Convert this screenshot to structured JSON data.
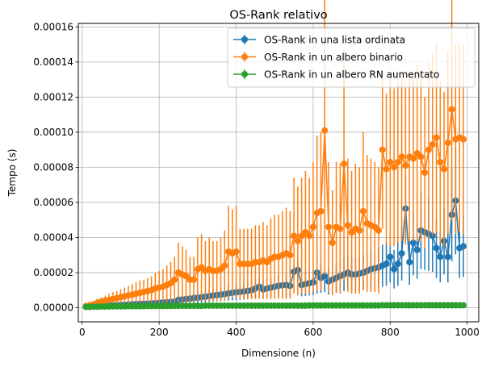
{
  "chart_data": {
    "type": "line",
    "title": "OS-Rank relativo",
    "xlabel": "Dimensione (n)",
    "ylabel": "Tempo (s)",
    "xlim": [
      -10,
      1030
    ],
    "ylim": [
      -8e-06,
      0.000162
    ],
    "x_ticks": [
      0,
      200,
      400,
      600,
      800,
      1000
    ],
    "x_tick_labels": [
      "0",
      "200",
      "400",
      "600",
      "800",
      "1000"
    ],
    "y_ticks": [
      0,
      2e-05,
      4e-05,
      6e-05,
      8e-05,
      0.0001,
      0.00012,
      0.00014,
      0.00016
    ],
    "y_tick_labels": [
      "0.00000",
      "0.00002",
      "0.00004",
      "0.00006",
      "0.00008",
      "0.00010",
      "0.00012",
      "0.00014",
      "0.00016"
    ],
    "grid": true,
    "legend_position": "top-right",
    "x": [
      10,
      20,
      30,
      40,
      50,
      60,
      70,
      80,
      90,
      100,
      110,
      120,
      130,
      140,
      150,
      160,
      170,
      180,
      190,
      200,
      210,
      220,
      230,
      240,
      250,
      260,
      270,
      280,
      290,
      300,
      310,
      320,
      330,
      340,
      350,
      360,
      370,
      380,
      390,
      400,
      410,
      420,
      430,
      440,
      450,
      460,
      470,
      480,
      490,
      500,
      510,
      520,
      530,
      540,
      550,
      560,
      570,
      580,
      590,
      600,
      610,
      620,
      630,
      640,
      650,
      660,
      670,
      680,
      690,
      700,
      710,
      720,
      730,
      740,
      750,
      760,
      770,
      780,
      790,
      800,
      810,
      820,
      830,
      840,
      850,
      860,
      870,
      880,
      890,
      900,
      910,
      920,
      930,
      940,
      950,
      960,
      970,
      980,
      990
    ],
    "series": [
      {
        "name": "OS-Rank in una lista ordinata",
        "color": "#1f77b4",
        "values": [
          5e-07,
          8e-07,
          9e-07,
          1e-06,
          1.1e-06,
          1.2e-06,
          1.3e-06,
          1.4e-06,
          1.5e-06,
          1.6e-06,
          1.7e-06,
          1.8e-06,
          2e-06,
          2.1e-06,
          2.2e-06,
          2.3e-06,
          2.4e-06,
          2.5e-06,
          2.6e-06,
          2.8e-06,
          3e-06,
          3.1e-06,
          3.3e-06,
          3.5e-06,
          4.5e-06,
          4.7e-06,
          5e-06,
          5.2e-06,
          5.5e-06,
          5.7e-06,
          6e-06,
          6.3e-06,
          6.6e-06,
          7e-06,
          7.2e-06,
          7.5e-06,
          7.8e-06,
          8.2e-06,
          8.5e-06,
          8.8e-06,
          9e-06,
          9.3e-06,
          9.6e-06,
          1e-05,
          1.1e-05,
          1.2e-05,
          1.05e-05,
          1.1e-05,
          1.15e-05,
          1.2e-05,
          1.25e-05,
          1.28e-05,
          1.3e-05,
          1.25e-05,
          2.05e-05,
          2.15e-05,
          1.3e-05,
          1.35e-05,
          1.4e-05,
          1.45e-05,
          2e-05,
          1.7e-05,
          1.8e-05,
          1.5e-05,
          1.6e-05,
          1.7e-05,
          1.8e-05,
          1.9e-05,
          2e-05,
          1.9e-05,
          1.9e-05,
          1.95e-05,
          2e-05,
          2.1e-05,
          2.2e-05,
          2.25e-05,
          2.3e-05,
          2.4e-05,
          2.5e-05,
          2.9e-05,
          2.2e-05,
          2.5e-05,
          3.1e-05,
          5.65e-05,
          2.6e-05,
          3.7e-05,
          3.3e-05,
          4.4e-05,
          4.3e-05,
          4.2e-05,
          4.1e-05,
          3.4e-05,
          2.9e-05,
          3.8e-05,
          2.9e-05,
          5.3e-05,
          6.1e-05,
          3.4e-05,
          3.5e-05
        ],
        "errors": [
          3e-07,
          4e-07,
          4e-07,
          5e-07,
          5e-07,
          6e-07,
          6e-07,
          7e-07,
          7e-07,
          8e-07,
          8e-07,
          9e-07,
          1e-06,
          1e-06,
          1.1e-06,
          1.1e-06,
          1.2e-06,
          1.2e-06,
          1.3e-06,
          1.4e-06,
          1.5e-06,
          1.5e-06,
          1.6e-06,
          1.7e-06,
          2.3e-06,
          2.4e-06,
          2.5e-06,
          2.6e-06,
          2.8e-06,
          2.9e-06,
          3e-06,
          3.2e-06,
          3.3e-06,
          3.5e-06,
          3.6e-06,
          3.8e-06,
          3.9e-06,
          4.1e-06,
          4.3e-06,
          4.4e-06,
          4.5e-06,
          4.7e-06,
          4.8e-06,
          5e-06,
          5.5e-06,
          6e-06,
          5.3e-06,
          5.5e-06,
          5.8e-06,
          6e-06,
          6.3e-06,
          6.4e-06,
          6.5e-06,
          6.3e-06,
          4e-06,
          6e-06,
          6.5e-06,
          6.8e-06,
          7e-06,
          7.3e-06,
          1.2e-05,
          8.5e-06,
          9e-06,
          7.5e-06,
          8e-06,
          8.5e-06,
          9e-06,
          9.5e-06,
          1e-05,
          9.5e-06,
          9.5e-06,
          9.8e-06,
          1e-05,
          1.05e-05,
          1.1e-05,
          1.13e-05,
          1.15e-05,
          1.2e-05,
          1.25e-05,
          1.45e-05,
          1.1e-05,
          1.25e-05,
          1.55e-05,
          1.8e-05,
          1.3e-05,
          1.85e-05,
          1.65e-05,
          2.2e-05,
          2.15e-05,
          2.1e-05,
          2.05e-05,
          1.7e-05,
          1.45e-05,
          1.9e-05,
          1.45e-05,
          2.65e-05,
          3.05e-05,
          1.7e-05,
          1.75e-05
        ]
      },
      {
        "name": "OS-Rank in un albero binario",
        "color": "#ff7f0e",
        "values": [
          1e-06,
          1.5e-06,
          2e-06,
          3e-06,
          3.5e-06,
          4e-06,
          4.5e-06,
          5e-06,
          5.5e-06,
          6e-06,
          6.5e-06,
          7e-06,
          7.5e-06,
          8e-06,
          8.5e-06,
          9e-06,
          9.5e-06,
          1e-05,
          1.1e-05,
          1.15e-05,
          1.2e-05,
          1.3e-05,
          1.4e-05,
          1.6e-05,
          2e-05,
          1.9e-05,
          1.8e-05,
          1.6e-05,
          1.6e-05,
          2.2e-05,
          2.3e-05,
          2.1e-05,
          2.2e-05,
          2.1e-05,
          2.1e-05,
          2.2e-05,
          2.4e-05,
          3.2e-05,
          3.1e-05,
          3.2e-05,
          2.5e-05,
          2.5e-05,
          2.5e-05,
          2.5e-05,
          2.6e-05,
          2.6e-05,
          2.7e-05,
          2.6e-05,
          2.8e-05,
          2.9e-05,
          2.9e-05,
          3e-05,
          3.1e-05,
          3e-05,
          4.1e-05,
          3.8e-05,
          4.1e-05,
          4.3e-05,
          4.1e-05,
          4.6e-05,
          5.4e-05,
          5.5e-05,
          0.000101,
          4.6e-05,
          3.7e-05,
          4.6e-05,
          4.5e-05,
          8.2e-05,
          4.7e-05,
          4.3e-05,
          4.5e-05,
          4.4e-05,
          5.5e-05,
          4.8e-05,
          4.7e-05,
          4.6e-05,
          4.4e-05,
          9e-05,
          7.9e-05,
          8.3e-05,
          8e-05,
          8.3e-05,
          8.6e-05,
          8.1e-05,
          8.6e-05,
          8.5e-05,
          8.8e-05,
          8.6e-05,
          7.7e-05,
          9e-05,
          9.3e-05,
          9.7e-05,
          8.3e-05,
          7.9e-05,
          9.4e-05,
          0.000113,
          9.6e-05,
          9.7e-05,
          9.6e-05
        ],
        "errors": [
          8e-07,
          1e-06,
          1.5e-06,
          2e-06,
          2.5e-06,
          3e-06,
          3.5e-06,
          4e-06,
          4e-06,
          4.5e-06,
          5e-06,
          5.5e-06,
          6e-06,
          6.5e-06,
          7e-06,
          7e-06,
          7.5e-06,
          8e-06,
          9e-06,
          9.5e-06,
          1e-05,
          1.1e-05,
          1.2e-05,
          1.3e-05,
          1.7e-05,
          1.6e-05,
          1.5e-05,
          1.3e-05,
          1.3e-05,
          1.8e-05,
          1.9e-05,
          1.7e-05,
          1.8e-05,
          1.7e-05,
          1.7e-05,
          1.8e-05,
          2e-05,
          2.6e-05,
          2.5e-05,
          2.6e-05,
          2e-05,
          2e-05,
          2e-05,
          2e-05,
          2.1e-05,
          2.1e-05,
          2.2e-05,
          2.1e-05,
          2.3e-05,
          2.4e-05,
          2.4e-05,
          2.5e-05,
          2.6e-05,
          2.5e-05,
          3.3e-05,
          3.1e-05,
          3.3e-05,
          3.5e-05,
          3.3e-05,
          3.7e-05,
          4.4e-05,
          4.5e-05,
          8.2e-05,
          3.7e-05,
          3e-05,
          3.7e-05,
          3.7e-05,
          6.6e-05,
          3.8e-05,
          3.5e-05,
          3.7e-05,
          3.6e-05,
          4.5e-05,
          3.9e-05,
          3.8e-05,
          3.7e-05,
          3.6e-05,
          4.5e-05,
          4.3e-05,
          4.8e-05,
          4.5e-05,
          4.6e-05,
          4.8e-05,
          4.5e-05,
          4.8e-05,
          4.7e-05,
          5e-05,
          4.8e-05,
          4.3e-05,
          5e-05,
          5.2e-05,
          5.4e-05,
          4.6e-05,
          4.4e-05,
          5.2e-05,
          6.3e-05,
          5.4e-05,
          5.4e-05,
          5.4e-05
        ]
      },
      {
        "name": "OS-Rank in un albero RN aumentato",
        "color": "#2ca02c",
        "values": [
          5e-07,
          5e-07,
          6e-07,
          6e-07,
          7e-07,
          7e-07,
          7e-07,
          8e-07,
          8e-07,
          8e-07,
          8e-07,
          9e-07,
          9e-07,
          9e-07,
          9e-07,
          9e-07,
          1e-06,
          1e-06,
          1e-06,
          1e-06,
          1e-06,
          1e-06,
          1e-06,
          1.1e-06,
          1.1e-06,
          1.1e-06,
          1.1e-06,
          1.1e-06,
          1.1e-06,
          1.1e-06,
          1.1e-06,
          1.2e-06,
          1.2e-06,
          1.2e-06,
          1.2e-06,
          1.2e-06,
          1.2e-06,
          1.2e-06,
          1.2e-06,
          1.2e-06,
          1.2e-06,
          1.2e-06,
          1.2e-06,
          1.2e-06,
          1.2e-06,
          1.2e-06,
          1.2e-06,
          1.2e-06,
          1.2e-06,
          1.2e-06,
          1.2e-06,
          1.2e-06,
          1.2e-06,
          1.2e-06,
          1.2e-06,
          1.2e-06,
          1.2e-06,
          1.2e-06,
          1.3e-06,
          1.3e-06,
          1.3e-06,
          1.3e-06,
          1.3e-06,
          1.3e-06,
          1.3e-06,
          1.3e-06,
          1.3e-06,
          1.3e-06,
          1.3e-06,
          1.3e-06,
          1.3e-06,
          1.3e-06,
          1.3e-06,
          1.3e-06,
          1.3e-06,
          1.3e-06,
          1.3e-06,
          1.4e-06,
          1.4e-06,
          1.4e-06,
          1.4e-06,
          1.4e-06,
          1.4e-06,
          1.4e-06,
          1.4e-06,
          1.4e-06,
          1.4e-06,
          1.4e-06,
          1.4e-06,
          1.4e-06,
          1.4e-06,
          1.4e-06,
          1.4e-06,
          1.4e-06,
          1.4e-06,
          1.4e-06,
          1.4e-06,
          1.4e-06,
          1.4e-06
        ],
        "errors": [
          2e-07,
          2e-07,
          2e-07,
          2e-07,
          2e-07,
          2e-07,
          2e-07,
          2e-07,
          2e-07,
          2e-07,
          2e-07,
          2e-07,
          2e-07,
          2e-07,
          2e-07,
          2e-07,
          2e-07,
          2e-07,
          2e-07,
          2e-07,
          2e-07,
          2e-07,
          2e-07,
          2e-07,
          2e-07,
          2e-07,
          2e-07,
          2e-07,
          2e-07,
          2e-07,
          2e-07,
          2e-07,
          2e-07,
          2e-07,
          2e-07,
          2e-07,
          2e-07,
          2e-07,
          2e-07,
          2e-07,
          2e-07,
          2e-07,
          2e-07,
          2e-07,
          2e-07,
          2e-07,
          2e-07,
          2e-07,
          2e-07,
          2e-07,
          2e-07,
          2e-07,
          2e-07,
          2e-07,
          2e-07,
          2e-07,
          2e-07,
          2e-07,
          2e-07,
          2e-07,
          2e-07,
          2e-07,
          2e-07,
          2e-07,
          2e-07,
          2e-07,
          2e-07,
          2e-07,
          2e-07,
          2e-07,
          2e-07,
          2e-07,
          2e-07,
          2e-07,
          2e-07,
          2e-07,
          2e-07,
          2e-07,
          2e-07,
          2e-07,
          2e-07,
          2e-07,
          2e-07,
          2e-07,
          2e-07,
          2e-07,
          2e-07,
          2e-07,
          2e-07,
          2e-07,
          2e-07,
          2e-07,
          2e-07,
          2e-07,
          2e-07,
          2e-07,
          2e-07,
          2e-07,
          2e-07
        ]
      }
    ]
  }
}
